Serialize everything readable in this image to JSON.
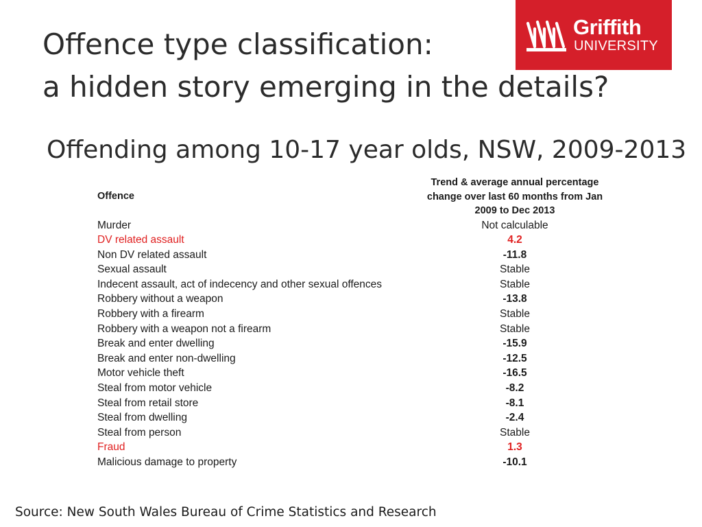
{
  "slide": {
    "title_line1": "Offence type classification:",
    "title_line2": "a hidden story emerging in the details?",
    "subtitle": "Offending among 10-17 year olds, NSW, 2009-2013",
    "source": "Source: New South Wales Bureau of Crime Statistics and Research"
  },
  "logo": {
    "word1": "Griffith",
    "word2": "UNIVERSITY",
    "background_color": "#d51f2a"
  },
  "table": {
    "headers": {
      "offence": "Offence",
      "trend": "Trend & average annual percentage change over last 60 months from Jan 2009 to Dec 2013"
    },
    "rows": [
      {
        "offence": "Murder",
        "trend": "Not calculable",
        "bold": false,
        "highlight": false
      },
      {
        "offence": "DV related assault",
        "trend": "4.2",
        "bold": true,
        "highlight": true
      },
      {
        "offence": "Non DV related assault",
        "trend": "-11.8",
        "bold": true,
        "highlight": false
      },
      {
        "offence": "Sexual assault",
        "trend": "Stable",
        "bold": false,
        "highlight": false
      },
      {
        "offence": "Indecent assault, act of indecency and other sexual offences",
        "trend": "Stable",
        "bold": false,
        "highlight": false
      },
      {
        "offence": "Robbery without a weapon",
        "trend": "-13.8",
        "bold": true,
        "highlight": false
      },
      {
        "offence": "Robbery with a firearm",
        "trend": "Stable",
        "bold": false,
        "highlight": false
      },
      {
        "offence": "Robbery with a weapon not a firearm",
        "trend": "Stable",
        "bold": false,
        "highlight": false
      },
      {
        "offence": "Break and enter dwelling",
        "trend": "-15.9",
        "bold": true,
        "highlight": false
      },
      {
        "offence": "Break and enter non-dwelling",
        "trend": "-12.5",
        "bold": true,
        "highlight": false
      },
      {
        "offence": "Motor vehicle theft",
        "trend": "-16.5",
        "bold": true,
        "highlight": false
      },
      {
        "offence": "Steal from motor vehicle",
        "trend": "-8.2",
        "bold": true,
        "highlight": false
      },
      {
        "offence": "Steal from retail store",
        "trend": "-8.1",
        "bold": true,
        "highlight": false
      },
      {
        "offence": "Steal from dwelling",
        "trend": "-2.4",
        "bold": true,
        "highlight": false
      },
      {
        "offence": "Steal from person",
        "trend": "Stable",
        "bold": false,
        "highlight": false
      },
      {
        "offence": "Fraud",
        "trend": "1.3",
        "bold": true,
        "highlight": true
      },
      {
        "offence": "Malicious damage to property",
        "trend": "-10.1",
        "bold": true,
        "highlight": false
      }
    ],
    "highlight_color": "#e02020"
  }
}
